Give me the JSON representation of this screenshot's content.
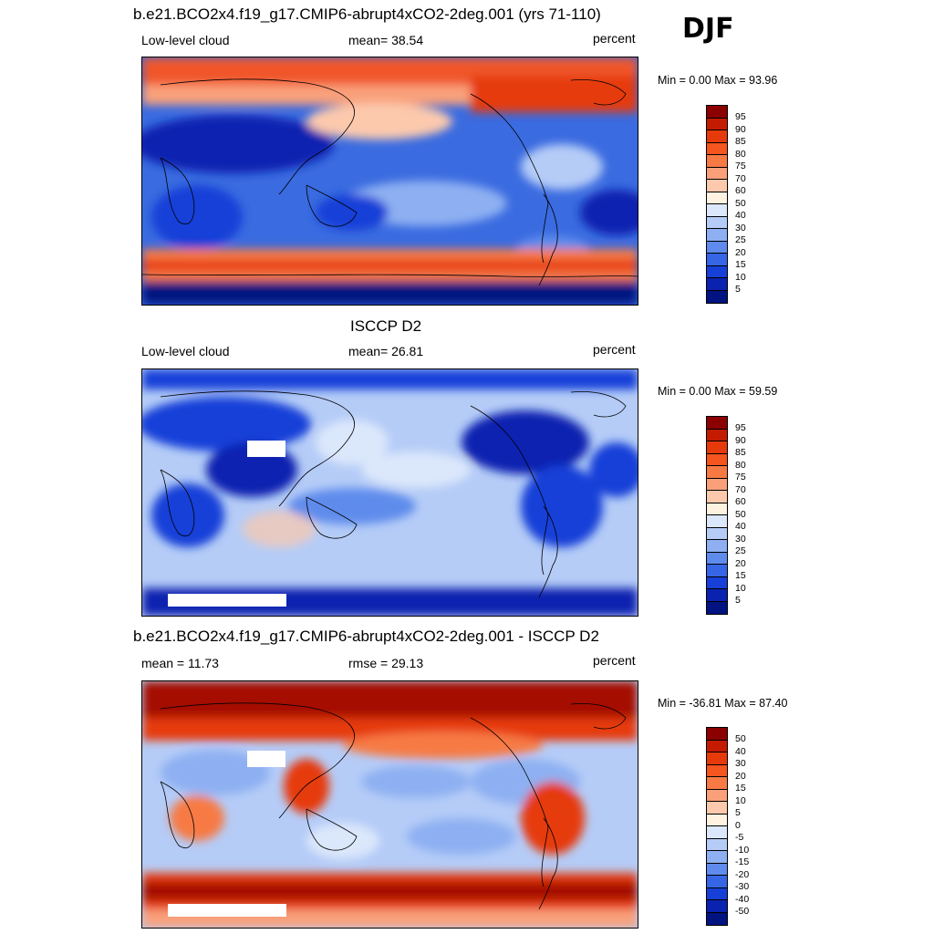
{
  "season": "DJF",
  "panels": [
    {
      "title": "b.e21.BCO2x4.f19_g17.CMIP6-abrupt4xCO2-2deg.001 (yrs 71-110)",
      "left_label": "Low-level cloud",
      "center_label": "mean=  38.54",
      "right_label": "percent",
      "minmax": "Min =   0.00 Max =  93.96"
    },
    {
      "title": "ISCCP D2",
      "left_label": "Low-level cloud",
      "center_label": "mean=  26.81",
      "right_label": "percent",
      "minmax": "Min =   0.00 Max =  59.59"
    },
    {
      "title": "b.e21.BCO2x4.f19_g17.CMIP6-abrupt4xCO2-2deg.001 - ISCCP D2",
      "left_label": "mean =  11.73",
      "center_label": "rmse =  29.13",
      "right_label": "percent",
      "minmax": "Min = -36.81 Max =  87.40"
    }
  ],
  "colorbar_abs": {
    "labels": [
      "95",
      "90",
      "85",
      "80",
      "75",
      "70",
      "60",
      "50",
      "40",
      "30",
      "25",
      "20",
      "15",
      "10",
      "5"
    ],
    "colors": [
      "#8b0000",
      "#c41a00",
      "#e63a0a",
      "#f5551f",
      "#f77a45",
      "#f9a07a",
      "#fcc9ad",
      "#fff2e0",
      "#dbe7fb",
      "#b5ccf7",
      "#8eb0f2",
      "#5f8cec",
      "#3666e6",
      "#1640d8",
      "#0a22b0",
      "#001380"
    ]
  },
  "colorbar_diff": {
    "labels": [
      "50",
      "40",
      "30",
      "20",
      "15",
      "10",
      "5",
      "0",
      "-5",
      "-10",
      "-15",
      "-20",
      "-30",
      "-40",
      "-50"
    ],
    "colors": [
      "#8b0000",
      "#c41a00",
      "#e63a0a",
      "#f5551f",
      "#f77a45",
      "#f9a07a",
      "#fcc9ad",
      "#fff2e0",
      "#dbe7fb",
      "#b5ccf7",
      "#8eb0f2",
      "#5f8cec",
      "#3666e6",
      "#1640d8",
      "#0a22b0",
      "#001380"
    ]
  }
}
